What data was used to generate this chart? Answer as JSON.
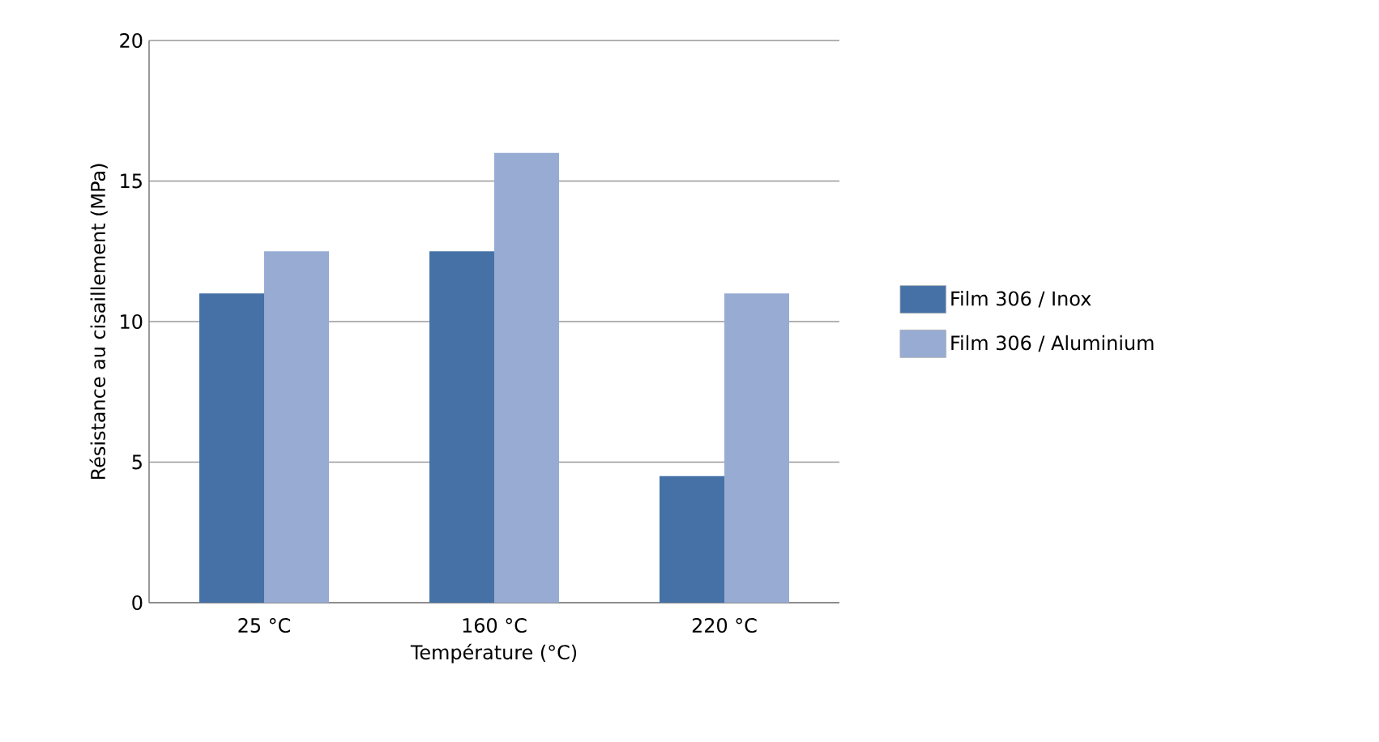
{
  "chart_data": {
    "type": "bar",
    "xlabel": "Température (°C)",
    "ylabel": "Résistance au cisaillement (MPa)",
    "categories": [
      "25 °C",
      "160 °C",
      "220 °C"
    ],
    "series": [
      {
        "name": "Film 306 / Inox",
        "color": "#4571a6",
        "values": [
          11,
          12.5,
          4.5
        ]
      },
      {
        "name": "Film 306 / Aluminium",
        "color": "#97abd3",
        "values": [
          12.5,
          16,
          11
        ]
      }
    ],
    "ylim": [
      0,
      20
    ],
    "yticks": [
      0,
      5,
      10,
      15,
      20
    ],
    "grid": "y",
    "legend": "right"
  }
}
